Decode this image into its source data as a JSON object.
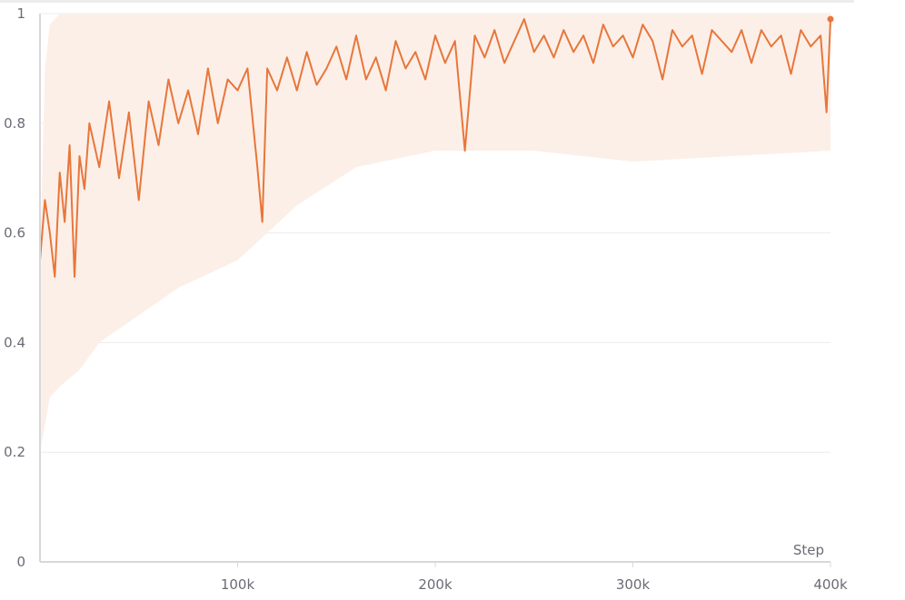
{
  "chart_data": {
    "type": "line",
    "title": "",
    "xlabel": "Step",
    "ylabel": "",
    "xlim": [
      0,
      400000
    ],
    "ylim": [
      0,
      1
    ],
    "grid": true,
    "legend": "none",
    "x_ticks": [
      {
        "value": 100000,
        "label": "100k"
      },
      {
        "value": 200000,
        "label": "200k"
      },
      {
        "value": 300000,
        "label": "300k"
      },
      {
        "value": 400000,
        "label": "400k"
      }
    ],
    "y_ticks": [
      {
        "value": 0,
        "label": "0"
      },
      {
        "value": 0.2,
        "label": "0.2"
      },
      {
        "value": 0.4,
        "label": "0.4"
      },
      {
        "value": 0.6,
        "label": "0.6"
      },
      {
        "value": 0.8,
        "label": "0.8"
      },
      {
        "value": 1,
        "label": "1"
      }
    ],
    "colors": {
      "line": "#e8763a",
      "band": "#fcefe8",
      "grid": "#ececec",
      "axis": "#d8d8dc"
    },
    "series": [
      {
        "x": [
          0,
          2500,
          5000,
          7500,
          10000,
          12500,
          15000,
          17500,
          20000,
          22500,
          25000,
          30000,
          35000,
          40000,
          45000,
          50000,
          55000,
          60000,
          65000,
          70000,
          75000,
          80000,
          85000,
          90000,
          95000,
          100000,
          105000,
          110000,
          112500,
          115000,
          120000,
          125000,
          130000,
          135000,
          140000,
          145000,
          150000,
          155000,
          160000,
          165000,
          170000,
          175000,
          180000,
          185000,
          190000,
          195000,
          200000,
          205000,
          210000,
          215000,
          220000,
          225000,
          230000,
          235000,
          240000,
          245000,
          250000,
          255000,
          260000,
          265000,
          270000,
          275000,
          280000,
          285000,
          290000,
          295000,
          300000,
          305000,
          310000,
          315000,
          320000,
          325000,
          330000,
          335000,
          340000,
          345000,
          350000,
          355000,
          360000,
          365000,
          370000,
          375000,
          380000,
          385000,
          390000,
          395000,
          398000,
          400000
        ],
        "y": [
          0.55,
          0.66,
          0.6,
          0.52,
          0.71,
          0.62,
          0.76,
          0.52,
          0.74,
          0.68,
          0.8,
          0.72,
          0.84,
          0.7,
          0.82,
          0.66,
          0.84,
          0.76,
          0.88,
          0.8,
          0.86,
          0.78,
          0.9,
          0.8,
          0.88,
          0.86,
          0.9,
          0.72,
          0.62,
          0.9,
          0.86,
          0.92,
          0.86,
          0.93,
          0.87,
          0.9,
          0.94,
          0.88,
          0.96,
          0.88,
          0.92,
          0.86,
          0.95,
          0.9,
          0.93,
          0.88,
          0.96,
          0.91,
          0.95,
          0.75,
          0.96,
          0.92,
          0.97,
          0.91,
          0.95,
          0.99,
          0.93,
          0.96,
          0.92,
          0.97,
          0.93,
          0.96,
          0.91,
          0.98,
          0.94,
          0.96,
          0.92,
          0.98,
          0.95,
          0.88,
          0.97,
          0.94,
          0.96,
          0.89,
          0.97,
          0.95,
          0.93,
          0.97,
          0.91,
          0.97,
          0.94,
          0.96,
          0.89,
          0.97,
          0.94,
          0.96,
          0.82,
          0.99
        ]
      }
    ],
    "band": {
      "x": [
        0,
        2500,
        5000,
        10000,
        20000,
        30000,
        50000,
        70000,
        100000,
        130000,
        160000,
        200000,
        250000,
        300000,
        350000,
        400000
      ],
      "lower": [
        0.2,
        0.25,
        0.3,
        0.32,
        0.35,
        0.4,
        0.45,
        0.5,
        0.55,
        0.65,
        0.72,
        0.75,
        0.75,
        0.73,
        0.74,
        0.75
      ],
      "upper": [
        0.55,
        0.9,
        0.98,
        1,
        1,
        1,
        1,
        1,
        1,
        1,
        1,
        1,
        1,
        1,
        1,
        1
      ]
    }
  }
}
